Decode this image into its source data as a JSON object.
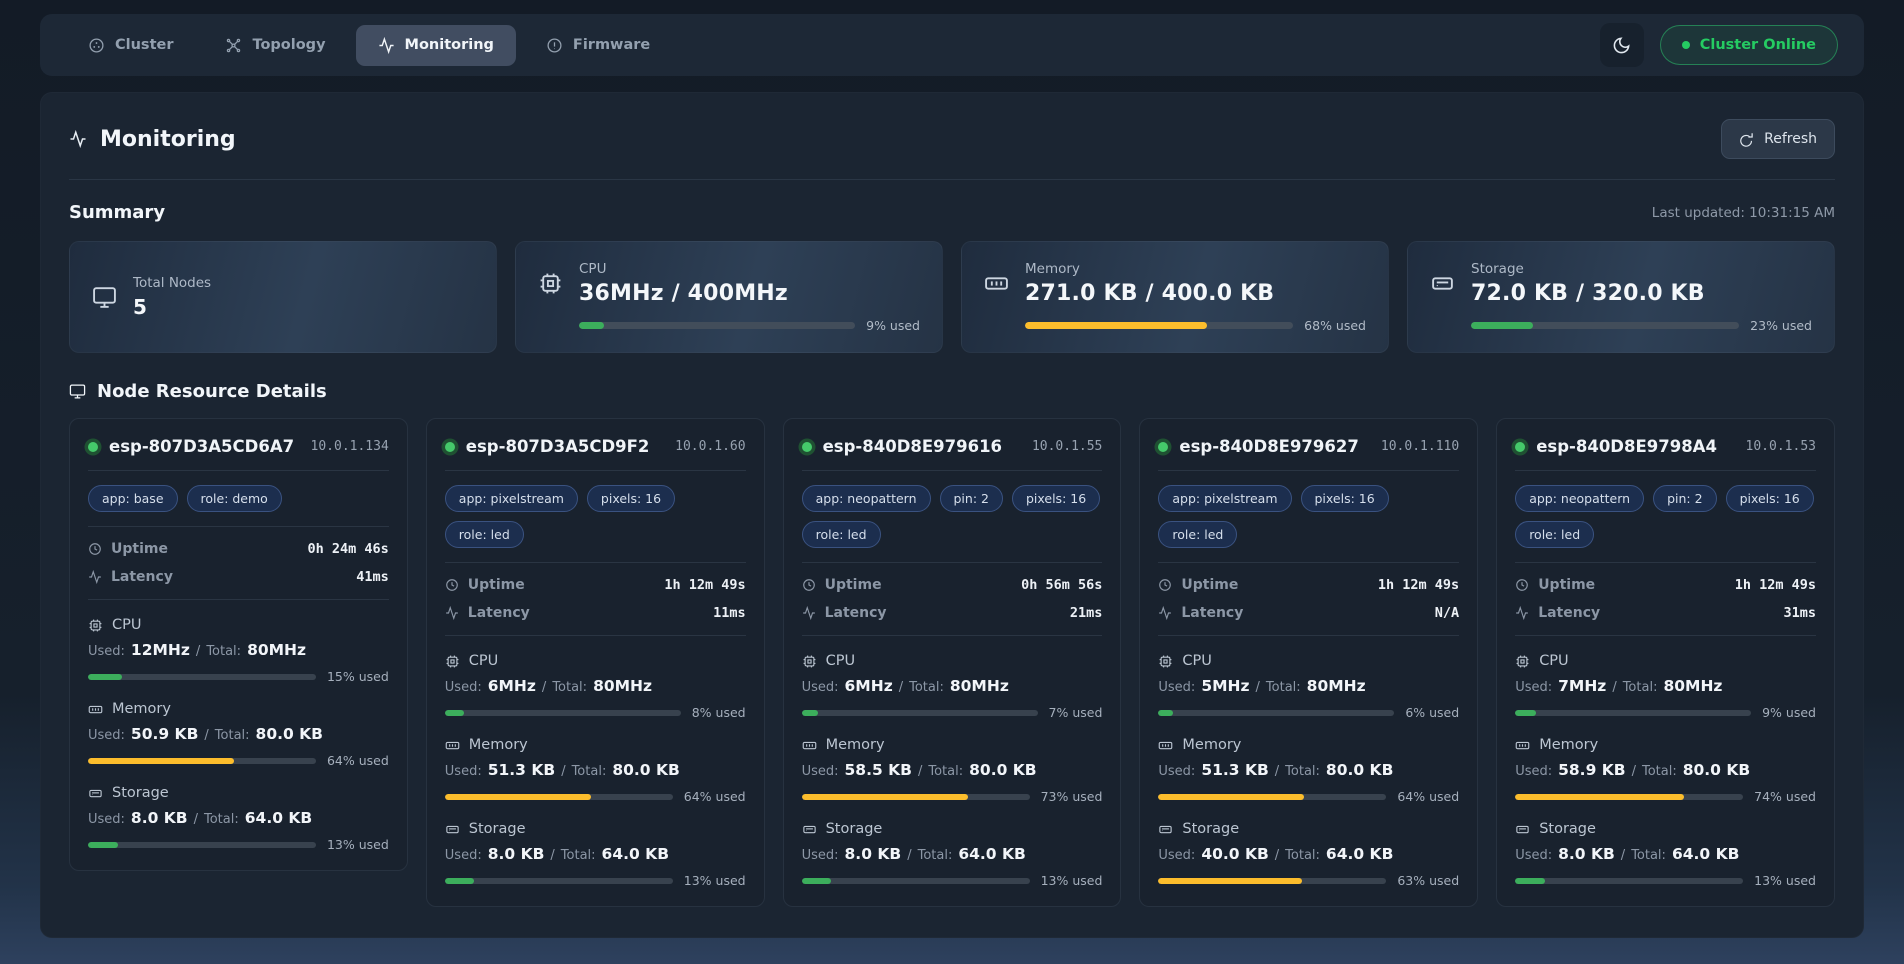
{
  "nav": {
    "tabs": [
      {
        "label": "Cluster"
      },
      {
        "label": "Topology"
      },
      {
        "label": "Monitoring",
        "active": true
      },
      {
        "label": "Firmware"
      }
    ],
    "status_pill": {
      "label": "Cluster Online"
    }
  },
  "header": {
    "title": "Monitoring",
    "refresh_label": "Refresh"
  },
  "labels": {
    "uptime": "Uptime",
    "latency": "Latency",
    "used": "Used:",
    "total": "Total:",
    "sep": "/"
  },
  "summary": {
    "heading": "Summary",
    "last_updated": "Last updated: 10:31:15 AM",
    "cards": [
      {
        "label": "Total Nodes",
        "value": "5",
        "icon": "monitor"
      },
      {
        "label": "CPU",
        "value": "36MHz / 400MHz",
        "icon": "cpu",
        "percent": 9,
        "percent_label": "9% used",
        "color": "green"
      },
      {
        "label": "Memory",
        "value": "271.0 KB / 400.0 KB",
        "icon": "memory",
        "percent": 68,
        "percent_label": "68% used",
        "color": "yellow"
      },
      {
        "label": "Storage",
        "value": "72.0 KB / 320.0 KB",
        "icon": "storage",
        "percent": 23,
        "percent_label": "23% used",
        "color": "green"
      }
    ]
  },
  "nodes": {
    "heading": "Node Resource Details",
    "cards": [
      {
        "name": "esp-807D3A5CD6A7",
        "ip": "10.0.1.134",
        "tags": [
          "app: base",
          "role: demo"
        ],
        "uptime": "0h 24m 46s",
        "latency": "41ms",
        "resources": [
          {
            "label": "CPU",
            "used": "12MHz",
            "total": "80MHz",
            "percent": 15,
            "percent_label": "15% used",
            "color": "green"
          },
          {
            "label": "Memory",
            "used": "50.9 KB",
            "total": "80.0 KB",
            "percent": 64,
            "percent_label": "64% used",
            "color": "yellow"
          },
          {
            "label": "Storage",
            "used": "8.0 KB",
            "total": "64.0 KB",
            "percent": 13,
            "percent_label": "13% used",
            "color": "green"
          }
        ]
      },
      {
        "name": "esp-807D3A5CD9F2",
        "ip": "10.0.1.60",
        "tags": [
          "app: pixelstream",
          "pixels: 16",
          "role: led"
        ],
        "uptime": "1h 12m 49s",
        "latency": "11ms",
        "resources": [
          {
            "label": "CPU",
            "used": "6MHz",
            "total": "80MHz",
            "percent": 8,
            "percent_label": "8% used",
            "color": "green"
          },
          {
            "label": "Memory",
            "used": "51.3 KB",
            "total": "80.0 KB",
            "percent": 64,
            "percent_label": "64% used",
            "color": "yellow"
          },
          {
            "label": "Storage",
            "used": "8.0 KB",
            "total": "64.0 KB",
            "percent": 13,
            "percent_label": "13% used",
            "color": "green"
          }
        ]
      },
      {
        "name": "esp-840D8E979616",
        "ip": "10.0.1.55",
        "tags": [
          "app: neopattern",
          "pin: 2",
          "pixels: 16",
          "role: led"
        ],
        "uptime": "0h 56m 56s",
        "latency": "21ms",
        "resources": [
          {
            "label": "CPU",
            "used": "6MHz",
            "total": "80MHz",
            "percent": 7,
            "percent_label": "7% used",
            "color": "green"
          },
          {
            "label": "Memory",
            "used": "58.5 KB",
            "total": "80.0 KB",
            "percent": 73,
            "percent_label": "73% used",
            "color": "yellow"
          },
          {
            "label": "Storage",
            "used": "8.0 KB",
            "total": "64.0 KB",
            "percent": 13,
            "percent_label": "13% used",
            "color": "green"
          }
        ]
      },
      {
        "name": "esp-840D8E979627",
        "ip": "10.0.1.110",
        "tags": [
          "app: pixelstream",
          "pixels: 16",
          "role: led"
        ],
        "uptime": "1h 12m 49s",
        "latency": "N/A",
        "resources": [
          {
            "label": "CPU",
            "used": "5MHz",
            "total": "80MHz",
            "percent": 6,
            "percent_label": "6% used",
            "color": "green"
          },
          {
            "label": "Memory",
            "used": "51.3 KB",
            "total": "80.0 KB",
            "percent": 64,
            "percent_label": "64% used",
            "color": "yellow"
          },
          {
            "label": "Storage",
            "used": "40.0 KB",
            "total": "64.0 KB",
            "percent": 63,
            "percent_label": "63% used",
            "color": "yellow"
          }
        ]
      },
      {
        "name": "esp-840D8E9798A4",
        "ip": "10.0.1.53",
        "tags": [
          "app: neopattern",
          "pin: 2",
          "pixels: 16",
          "role: led"
        ],
        "uptime": "1h 12m 49s",
        "latency": "31ms",
        "resources": [
          {
            "label": "CPU",
            "used": "7MHz",
            "total": "80MHz",
            "percent": 9,
            "percent_label": "9% used",
            "color": "green"
          },
          {
            "label": "Memory",
            "used": "58.9 KB",
            "total": "80.0 KB",
            "percent": 74,
            "percent_label": "74% used",
            "color": "yellow"
          },
          {
            "label": "Storage",
            "used": "8.0 KB",
            "total": "64.0 KB",
            "percent": 13,
            "percent_label": "13% used",
            "color": "green"
          }
        ]
      }
    ]
  },
  "colors": {
    "green": "#3cae5c",
    "yellow": "#fcbd2c",
    "online": "#25cb62"
  }
}
